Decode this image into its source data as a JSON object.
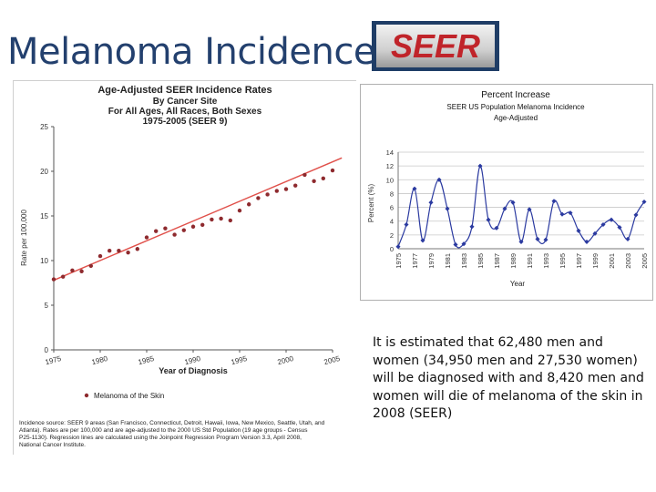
{
  "slide": {
    "title": "Melanoma Incidence",
    "logo_text": "SEER",
    "body": "It is estimated that 62,480 men and women (34,950 men and 27,530 women) will be diagnosed with and 8,420 men and women will die of melanoma of the skin in 2008 (SEER)"
  },
  "colors": {
    "title": "#23406e",
    "seer_red": "#c0242a",
    "trend_line": "#e0504a",
    "marker": "#8e2a2e",
    "right_series": "#2b3aa0"
  },
  "chart_data": [
    {
      "type": "scatter",
      "title": "Age-Adjusted SEER Incidence Rates",
      "subtitle_lines": [
        "By Cancer Site",
        "For All Ages, All Races, Both Sexes",
        "1975-2005 (SEER 9)"
      ],
      "xlabel": "Year of Diagnosis",
      "ylabel": "Rate per 100,000",
      "xlim": [
        1975,
        2005
      ],
      "ylim": [
        0,
        25
      ],
      "xticks": [
        1975,
        1980,
        1985,
        1990,
        1995,
        2000,
        2005
      ],
      "yticks": [
        0,
        5,
        10,
        15,
        20,
        25
      ],
      "legend_label": "Melanoma of the Skin",
      "legend_position": "bottom",
      "footnote": "Incidence source: SEER 9 areas (San Francisco, Connecticut, Detroit, Hawaii, Iowa, New Mexico, Seattle, Utah, and Atlanta). Rates are per 100,000 and are age-adjusted to the 2000 US Std Population (19 age groups - Census P25-1130). Regression lines are calculated using the Joinpoint Regression Program Version 3.3, April 2008, National Cancer Institute.",
      "x": [
        1975,
        1976,
        1977,
        1978,
        1979,
        1980,
        1981,
        1982,
        1983,
        1984,
        1985,
        1986,
        1987,
        1988,
        1989,
        1990,
        1991,
        1992,
        1993,
        1994,
        1995,
        1996,
        1997,
        1998,
        1999,
        2000,
        2001,
        2002,
        2003,
        2004,
        2005
      ],
      "y": [
        7.9,
        8.2,
        8.9,
        8.8,
        9.4,
        10.5,
        11.1,
        11.1,
        10.9,
        11.3,
        12.6,
        13.3,
        13.6,
        12.9,
        13.4,
        13.8,
        14.0,
        14.6,
        14.7,
        14.5,
        15.6,
        16.3,
        17.0,
        17.4,
        17.8,
        18.0,
        18.4,
        19.6,
        18.9,
        19.2,
        20.1
      ],
      "trend": {
        "x": [
          1975,
          2006
        ],
        "y": [
          7.8,
          21.5
        ]
      }
    },
    {
      "type": "line",
      "title": "Percent Increase",
      "subtitle_lines": [
        "SEER US Population Melanoma Incidence",
        "Age-Adjusted"
      ],
      "xlabel": "Year",
      "ylabel": "Percent (%)",
      "ylim": [
        0,
        14
      ],
      "yticks": [
        0,
        2,
        4,
        6,
        8,
        10,
        12,
        14
      ],
      "xtick_labels": [
        "1975",
        "1977",
        "1979",
        "1981",
        "1983",
        "1985",
        "1987",
        "1989",
        "1991",
        "1993",
        "1995",
        "1997",
        "1999",
        "2001",
        "2003",
        "2005"
      ],
      "grid": true,
      "x": [
        1975,
        1976,
        1977,
        1978,
        1979,
        1980,
        1981,
        1982,
        1983,
        1984,
        1985,
        1986,
        1987,
        1988,
        1989,
        1990,
        1991,
        1992,
        1993,
        1994,
        1995,
        1996,
        1997,
        1998,
        1999,
        2000,
        2001,
        2002,
        2003,
        2004,
        2005
      ],
      "y": [
        0.3,
        3.5,
        8.7,
        1.2,
        6.7,
        10.0,
        5.8,
        0.6,
        0.7,
        3.2,
        12.0,
        4.2,
        3.0,
        5.8,
        6.7,
        1.0,
        5.7,
        1.4,
        1.3,
        6.9,
        5.0,
        5.2,
        2.6,
        1.0,
        2.2,
        3.5,
        4.2,
        3.1,
        1.4,
        4.9,
        6.8
      ]
    }
  ]
}
